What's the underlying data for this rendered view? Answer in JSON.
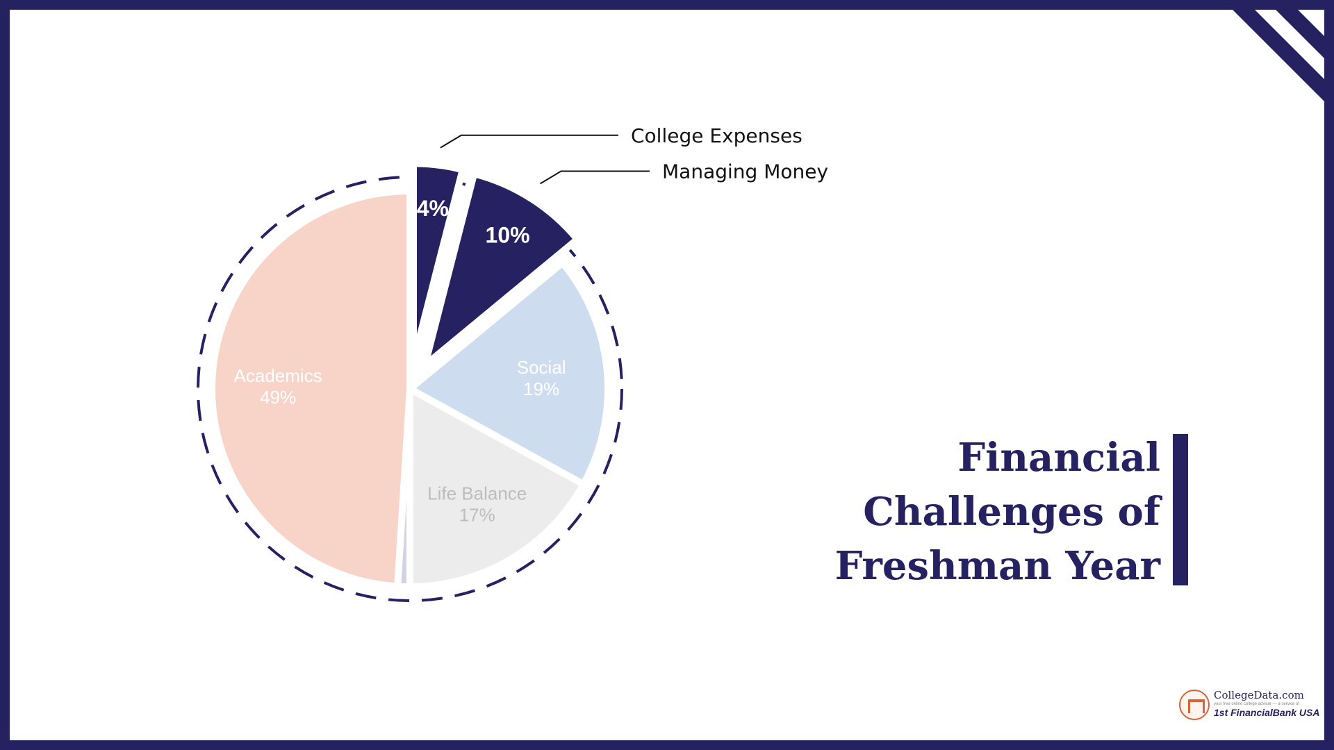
{
  "title": {
    "lines": [
      "Financial",
      "Challenges of",
      "Freshman Year"
    ]
  },
  "colors": {
    "navy": "#262261",
    "academics": "#f8d3c7",
    "social": "#cddcee",
    "life_balance": "#ececec",
    "small_slice": "#d2d2e3"
  },
  "chart_data": {
    "type": "pie",
    "title": "",
    "slices": [
      {
        "name": "College Expenses",
        "label": "4%",
        "value": 4,
        "color": "#262261",
        "label_color": "#ffffff",
        "exploded": true,
        "callout": true
      },
      {
        "name": "Managing Money",
        "label": "10%",
        "value": 10,
        "color": "#262261",
        "label_color": "#ffffff",
        "exploded": true,
        "callout": true
      },
      {
        "name": "Social",
        "label": "19%",
        "value": 19,
        "color": "#cddcee",
        "label_color": "#ffffff",
        "exploded": false,
        "callout": false
      },
      {
        "name": "Life Balance",
        "label": "17%",
        "value": 17,
        "color": "#ececec",
        "label_color": "#bdbdbd",
        "exploded": false,
        "callout": false
      },
      {
        "name": "",
        "label": "",
        "value": 1,
        "color": "#d2d2e3",
        "label_color": "#ffffff",
        "exploded": false,
        "callout": false
      },
      {
        "name": "Academics",
        "label": "49%",
        "value": 49,
        "color": "#f8d3c7",
        "label_color": "#ffffff",
        "exploded": false,
        "callout": false
      }
    ],
    "outline": "dashed circle",
    "legend": "none"
  },
  "logo": {
    "name": "CollegeData.com",
    "tagline": "your free online college advisor — a service of",
    "bank": "1st FinancialBank USA"
  }
}
